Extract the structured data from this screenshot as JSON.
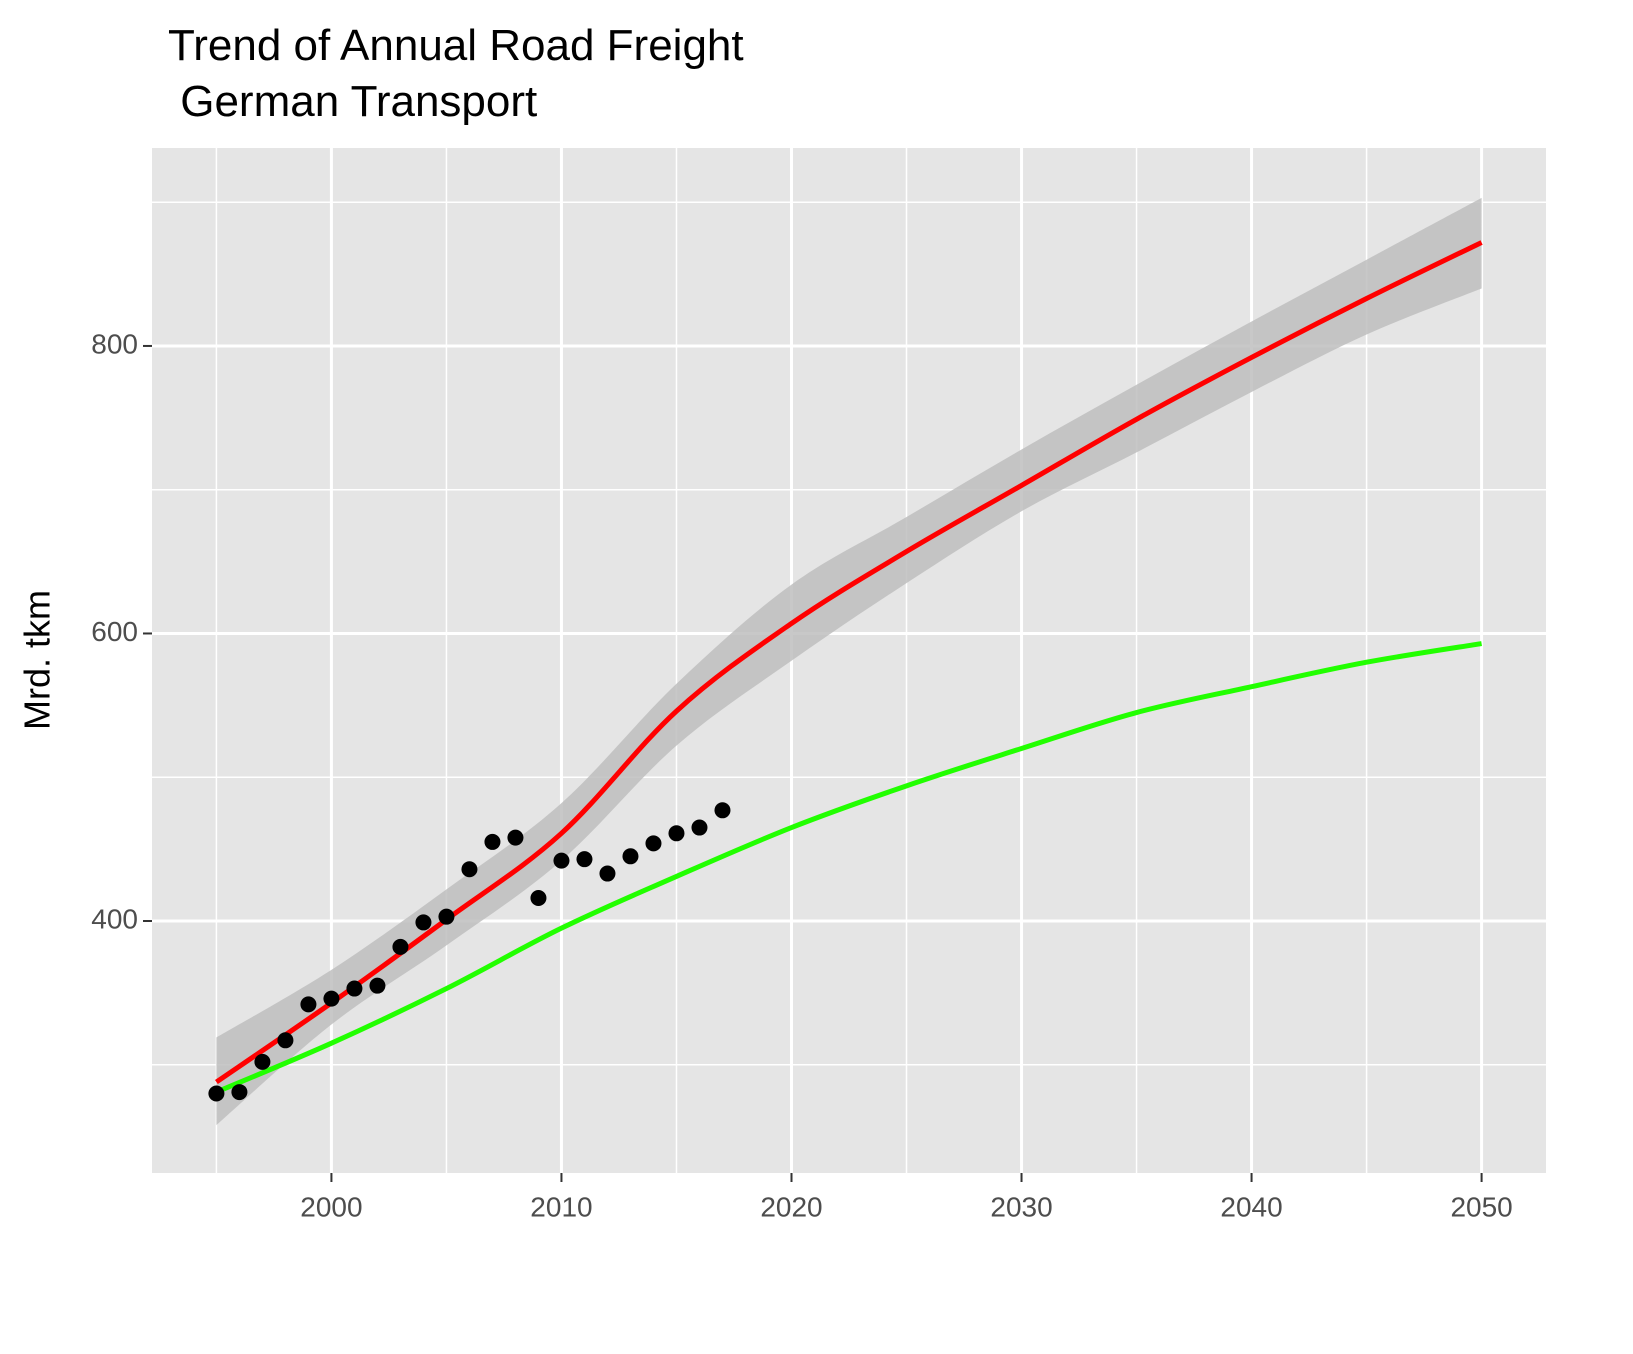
{
  "chart_data": {
    "type": "scatter",
    "title": "Trend of Annual Road Freight\n German Transport",
    "y_label": "Mrd. tkm",
    "xlim": [
      1992.2,
      2052.8
    ],
    "ylim": [
      224.7,
      937.7
    ],
    "xticks": [
      2000,
      2010,
      2020,
      2030,
      2040,
      2050
    ],
    "yticks": [
      400,
      600,
      800
    ],
    "x_minor_ticks": [
      1995,
      2005,
      2015,
      2025,
      2035,
      2045
    ],
    "y_minor_ticks": [
      300,
      500,
      700,
      900
    ],
    "grid": true,
    "points": {
      "color": "#000000",
      "x": [
        1995,
        1996,
        1997,
        1998,
        1999,
        2000,
        2001,
        2002,
        2003,
        2004,
        2005,
        2006,
        2007,
        2008,
        2009,
        2010,
        2011,
        2012,
        2013,
        2014,
        2015,
        2016,
        2017
      ],
      "values": [
        280,
        281,
        302,
        317,
        342,
        346,
        353,
        355,
        382,
        399,
        403,
        436,
        455,
        458,
        416,
        442,
        443,
        433,
        445,
        454,
        461,
        465,
        477
      ]
    },
    "trend": {
      "color": "#ff0000",
      "band_color": "#bebebe",
      "x": [
        1995,
        2000,
        2005,
        2010,
        2015,
        2020,
        2025,
        2030,
        2035,
        2040,
        2045,
        2050
      ],
      "values": [
        288,
        343,
        401,
        461,
        546,
        607,
        657,
        703,
        749,
        792,
        833,
        872
      ],
      "lower": [
        258,
        328,
        383,
        442,
        522,
        581,
        635,
        685,
        726,
        768,
        808,
        840
      ],
      "upper": [
        319,
        366,
        422,
        482,
        565,
        634,
        681,
        728,
        773,
        817,
        860,
        903
      ]
    },
    "projection": {
      "color": "#22ff00",
      "x": [
        1995,
        2000,
        2005,
        2010,
        2015,
        2020,
        2025,
        2030,
        2035,
        2040,
        2045,
        2050
      ],
      "values": [
        281,
        315,
        353,
        395,
        431,
        465,
        494,
        520,
        545,
        563,
        580,
        593
      ]
    }
  }
}
